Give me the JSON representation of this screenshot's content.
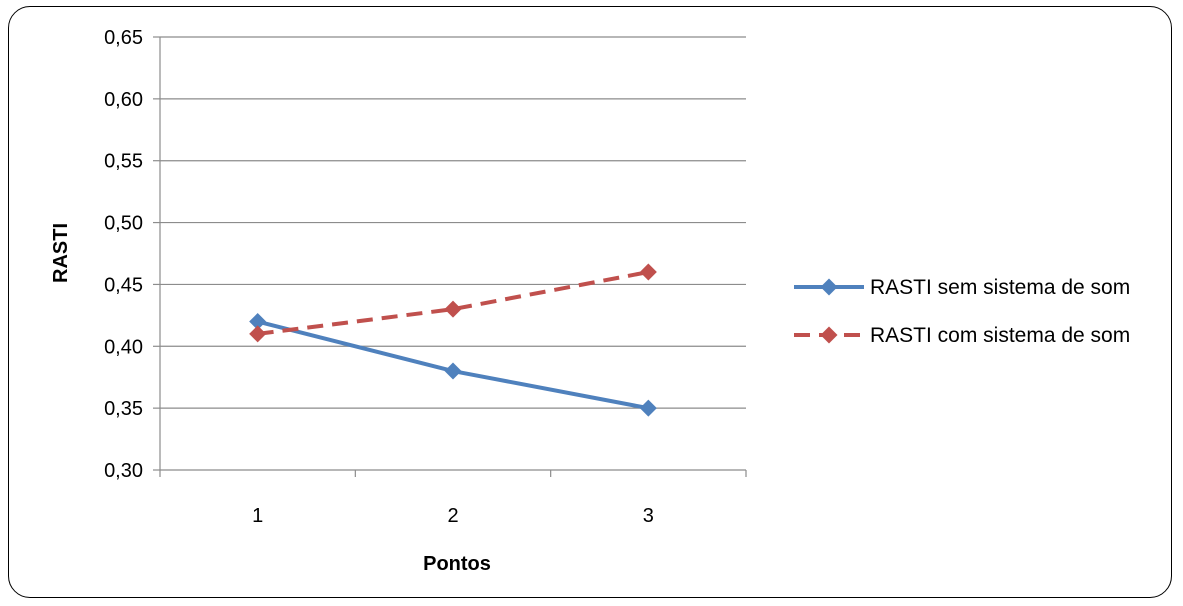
{
  "chart_data": {
    "type": "line",
    "title": "",
    "xlabel": "Pontos",
    "ylabel": "RASTI",
    "categories": [
      "1",
      "2",
      "3"
    ],
    "ylim": [
      0.3,
      0.65
    ],
    "yticks": [
      "0,30",
      "0,35",
      "0,40",
      "0,45",
      "0,50",
      "0,55",
      "0,60",
      "0,65"
    ],
    "ytick_values": [
      0.3,
      0.35,
      0.4,
      0.45,
      0.5,
      0.55,
      0.6,
      0.65
    ],
    "grid": true,
    "legend_position": "right",
    "series": [
      {
        "name": "RASTI sem sistema de som",
        "values": [
          0.42,
          0.38,
          0.35
        ],
        "color": "#4F81BD",
        "line_style": "solid",
        "marker": "diamond"
      },
      {
        "name": "RASTI com sistema de som",
        "values": [
          0.41,
          0.43,
          0.46
        ],
        "color": "#C0504D",
        "line_style": "dashed",
        "marker": "diamond"
      }
    ]
  }
}
